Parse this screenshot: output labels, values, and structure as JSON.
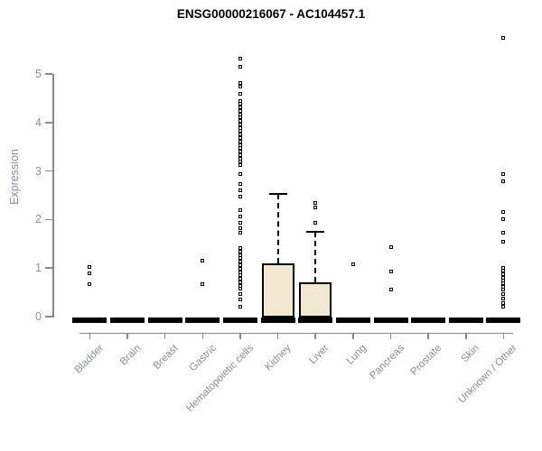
{
  "chart_data": {
    "type": "boxplot",
    "title": "ENSG00000216067 - AC104457.1",
    "ylabel": "Expression",
    "xlabel": "",
    "ylim": [
      0,
      5
    ],
    "yticks": [
      0,
      1,
      2,
      3,
      4,
      5
    ],
    "grid": false,
    "legend": "none",
    "categories": [
      "Bladder",
      "Brain",
      "Breast",
      "Gastric",
      "Hematopoietic cells",
      "Kidney",
      "Liver",
      "Lung",
      "Pancreas",
      "Prostate",
      "Skin",
      "Unknown / Other"
    ],
    "series": [
      {
        "name": "Bladder",
        "median": 0,
        "q1": 0,
        "q3": 0,
        "whisker_low": 0,
        "whisker_high": 0,
        "outliers": [
          1.02,
          0.9,
          0.67
        ]
      },
      {
        "name": "Brain",
        "median": 0,
        "q1": 0,
        "q3": 0,
        "whisker_low": 0,
        "whisker_high": 0,
        "outliers": []
      },
      {
        "name": "Breast",
        "median": 0,
        "q1": 0,
        "q3": 0,
        "whisker_low": 0,
        "whisker_high": 0,
        "outliers": []
      },
      {
        "name": "Gastric",
        "median": 0,
        "q1": 0,
        "q3": 0,
        "whisker_low": 0,
        "whisker_high": 0,
        "outliers": [
          1.15,
          0.66
        ]
      },
      {
        "name": "Hematopoietic cells",
        "median": 0,
        "q1": 0,
        "q3": 0,
        "whisker_low": 0,
        "whisker_high": 0,
        "outliers": [
          5.32,
          5.15,
          4.82,
          4.74,
          4.6,
          4.45,
          4.38,
          4.31,
          4.24,
          4.17,
          4.1,
          4.03,
          3.96,
          3.89,
          3.82,
          3.75,
          3.68,
          3.61,
          3.54,
          3.47,
          3.4,
          3.33,
          3.26,
          3.19,
          3.12,
          2.93,
          2.74,
          2.61,
          2.47,
          2.19,
          2.06,
          1.94,
          1.82,
          1.73,
          1.41,
          1.34,
          1.27,
          1.2,
          1.13,
          1.06,
          0.99,
          0.92,
          0.85,
          0.78,
          0.71,
          0.64,
          0.58,
          0.47,
          0.36,
          0.2
        ]
      },
      {
        "name": "Kidney",
        "median": 0,
        "q1": 0,
        "q3": 1.1,
        "whisker_low": 0,
        "whisker_high": 2.53,
        "outliers": []
      },
      {
        "name": "Liver",
        "median": 0,
        "q1": 0,
        "q3": 0.7,
        "whisker_low": 0,
        "whisker_high": 1.75,
        "outliers": [
          2.34,
          2.25,
          1.94
        ]
      },
      {
        "name": "Lung",
        "median": 0,
        "q1": 0,
        "q3": 0,
        "whisker_low": 0,
        "whisker_high": 0,
        "outliers": [
          1.08
        ]
      },
      {
        "name": "Pancreas",
        "median": 0,
        "q1": 0,
        "q3": 0,
        "whisker_low": 0,
        "whisker_high": 0,
        "outliers": [
          1.43,
          0.93,
          0.55
        ]
      },
      {
        "name": "Prostate",
        "median": 0,
        "q1": 0,
        "q3": 0,
        "whisker_low": 0,
        "whisker_high": 0,
        "outliers": []
      },
      {
        "name": "Skin",
        "median": 0,
        "q1": 0,
        "q3": 0,
        "whisker_low": 0,
        "whisker_high": 0,
        "outliers": []
      },
      {
        "name": "Unknown / Other",
        "median": 0,
        "q1": 0,
        "q3": 0,
        "whisker_low": 0,
        "whisker_high": 0,
        "outliers": [
          5.75,
          2.93,
          2.78,
          2.16,
          2.0,
          1.72,
          1.54,
          1.01,
          0.94,
          0.87,
          0.8,
          0.74,
          0.68,
          0.62,
          0.55,
          0.47,
          0.38,
          0.28,
          0.2
        ]
      }
    ],
    "colors": {
      "box_fill": "#f0e9cf",
      "box_border": "#000000",
      "median": "#000000",
      "axis": "#888888",
      "tick_label": "#8a8f98",
      "title": "#000000",
      "background": "#ffffff"
    }
  }
}
